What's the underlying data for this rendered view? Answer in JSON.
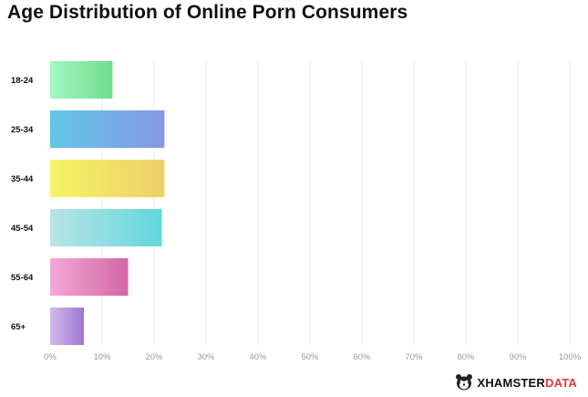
{
  "brand": {
    "name_part1": "XHAMSTER",
    "name_part2": "DATA",
    "logo_icon": "hamster-head-icon",
    "accent_color": "#e5343a"
  },
  "chart_data": {
    "type": "bar",
    "orientation": "horizontal",
    "title": "Age Distribution of Online Porn Consumers",
    "xlabel": "",
    "ylabel": "",
    "categories": [
      "18-24",
      "25-34",
      "35-44",
      "45-54",
      "55-64",
      "65+"
    ],
    "values": [
      12,
      22,
      22,
      21.5,
      15,
      6.5
    ],
    "unit": "%",
    "xlim": [
      0,
      100
    ],
    "x_ticks": [
      "0%",
      "10%",
      "20%",
      "30%",
      "40%",
      "50%",
      "60%",
      "70%",
      "80%",
      "90%",
      "100%"
    ],
    "grid": "vertical",
    "legend": "none",
    "gradients": [
      [
        "#a4f7c2",
        "#6fdd8d"
      ],
      [
        "#61c7e6",
        "#8696e5"
      ],
      [
        "#f5f466",
        "#eecf6a"
      ],
      [
        "#b9e4e6",
        "#62d6dd"
      ],
      [
        "#f3a8d7",
        "#d466a5"
      ],
      [
        "#d4bbee",
        "#9d76cf"
      ]
    ]
  }
}
